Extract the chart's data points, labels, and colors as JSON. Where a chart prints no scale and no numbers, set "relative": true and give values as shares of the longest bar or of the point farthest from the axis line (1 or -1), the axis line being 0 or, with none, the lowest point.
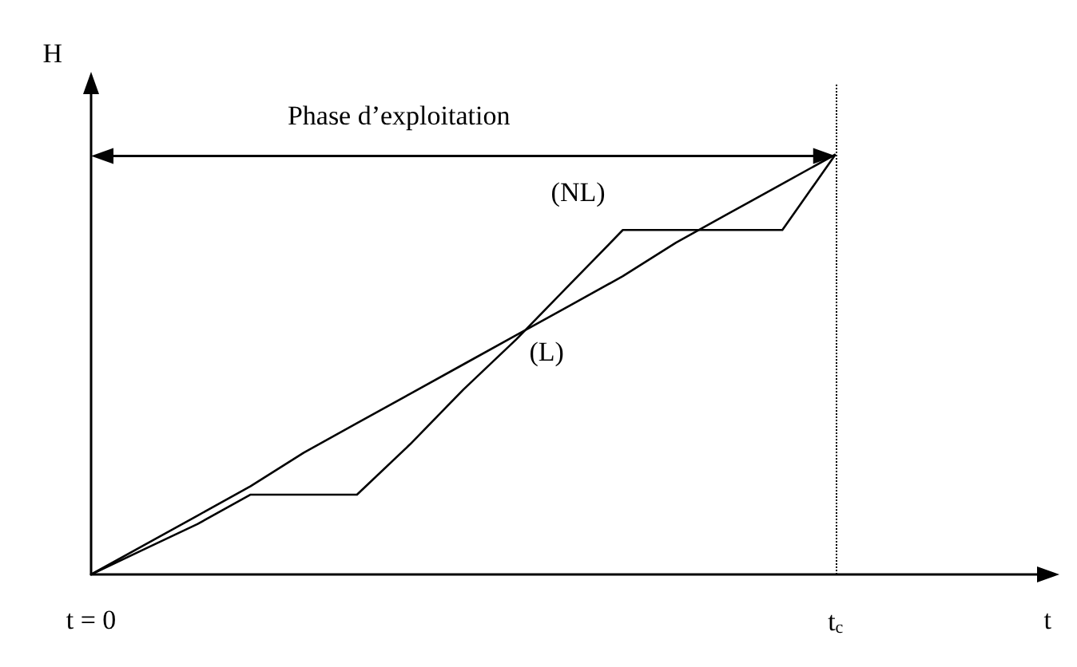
{
  "chart_data": {
    "type": "line",
    "relative": true,
    "xlabel": "t",
    "ylabel": "H",
    "categories": [
      "t = 0",
      null,
      null,
      null,
      null,
      null,
      null,
      null,
      null,
      null,
      null,
      null,
      null,
      null,
      "t$_{c}$",
      null,
      null,
      null,
      null
    ],
    "series": [
      {
        "name": "(NL)",
        "color": "#000000",
        "values": [
          0,
          0.06,
          0.12,
          0.19,
          0.19,
          0.19,
          0.31,
          0.44,
          0.56,
          0.69,
          0.82,
          0.82,
          0.82,
          0.82,
          1,
          null,
          null,
          null,
          null
        ]
      },
      {
        "name": "(L)",
        "color": "#000000",
        "values": [
          0,
          0.07,
          0.14,
          0.21,
          0.29,
          0.36,
          0.43,
          0.5,
          0.57,
          0.64,
          0.71,
          0.79,
          0.86,
          0.93,
          1,
          null,
          null,
          null,
          null
        ]
      }
    ],
    "ref_lines": [
      {
        "axis": "x",
        "value": "t$_{c}$",
        "line_style": "dotted",
        "color": "#000000"
      }
    ],
    "annotations": [
      "Phase d’exploitation"
    ],
    "grid": false,
    "legend": false,
    "marker": "none",
    "line_style": "solid"
  }
}
